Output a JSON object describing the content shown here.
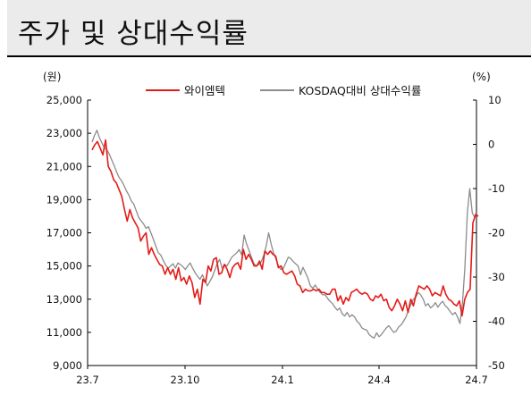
{
  "header": {
    "title": "주가 및 상대수익률"
  },
  "chart_data": {
    "type": "line",
    "title": "주가 및 상대수익률",
    "left_axis": {
      "unit": "(원)",
      "ylim": [
        9000,
        25000
      ],
      "ticks": [
        9000,
        11000,
        13000,
        15000,
        17000,
        19000,
        21000,
        23000,
        25000
      ],
      "tick_labels": [
        "9,000",
        "11,000",
        "13,000",
        "15,000",
        "17,000",
        "19,000",
        "21,000",
        "23,000",
        "25,000"
      ]
    },
    "right_axis": {
      "unit": "(%)",
      "ylim": [
        -50,
        10
      ],
      "ticks": [
        -50,
        -40,
        -30,
        -20,
        -10,
        0,
        10
      ],
      "tick_labels": [
        "-50",
        "-40",
        "-30",
        "-20",
        "-10",
        "0",
        "10"
      ]
    },
    "x_axis": {
      "tick_labels": [
        "23.7",
        "23.10",
        "24.1",
        "24.4",
        "24.7"
      ]
    },
    "legend_position": "top",
    "series": [
      {
        "name": "와이엠텍",
        "axis": "left",
        "color": "#e41b17",
        "values": [
          22000,
          22300,
          22500,
          22100,
          21700,
          22600,
          21000,
          20700,
          20200,
          20000,
          19600,
          19200,
          18400,
          17700,
          18400,
          17900,
          17600,
          17300,
          16500,
          16800,
          17000,
          15700,
          16100,
          15700,
          15400,
          15100,
          15000,
          14500,
          14900,
          14500,
          14800,
          14200,
          14900,
          14100,
          14300,
          13900,
          14400,
          14000,
          13100,
          13600,
          12700,
          14200,
          14000,
          15000,
          14700,
          15400,
          15500,
          14500,
          14600,
          15100,
          14800,
          14300,
          14900,
          15100,
          15200,
          14800,
          16000,
          15400,
          15700,
          15400,
          15000,
          15000,
          15300,
          14800,
          15900,
          15700,
          15900,
          15700,
          15600,
          14900,
          15000,
          14600,
          14500,
          14600,
          14700,
          14400,
          13900,
          13800,
          13400,
          13600,
          13500,
          13500,
          13600,
          13500,
          13600,
          13400,
          13400,
          13300,
          13300,
          13600,
          13600,
          12900,
          13200,
          12700,
          13100,
          12900,
          13400,
          13500,
          13600,
          13400,
          13300,
          13400,
          13300,
          13000,
          12900,
          13200,
          13100,
          13300,
          12900,
          13000,
          12500,
          12300,
          12600,
          13000,
          12700,
          12300,
          12900,
          12200,
          13000,
          12600,
          13300,
          13800,
          13700,
          13600,
          13800,
          13600,
          13200,
          13400,
          13300,
          13200,
          13800,
          13300,
          13000,
          12900,
          12700,
          12600,
          12900,
          12000,
          13000,
          13400,
          13600,
          17600,
          18100,
          18000
        ]
      },
      {
        "name": "KOSDAQ대비 상대수익률",
        "axis": "right",
        "color": "#8c8c8c",
        "values": [
          0.5,
          2.0,
          3.2,
          1.5,
          0.3,
          -0.8,
          -1.2,
          -2.2,
          -3.5,
          -4.8,
          -6.2,
          -7.5,
          -8.2,
          -9.3,
          -10.5,
          -11.5,
          -12.8,
          -13.5,
          -15.0,
          -16.5,
          -17.3,
          -18.0,
          -19.0,
          -18.6,
          -20.0,
          -21.5,
          -23.0,
          -24.5,
          -25.0,
          -26.2,
          -27.3,
          -28.0,
          -27.5,
          -27.0,
          -28.0,
          -26.8,
          -27.2,
          -27.6,
          -28.3,
          -27.5,
          -26.8,
          -28.0,
          -29.0,
          -29.8,
          -30.5,
          -29.5,
          -30.8,
          -32.0,
          -31.0,
          -30.0,
          -28.5,
          -27.0,
          -26.0,
          -28.0,
          -27.2,
          -27.5,
          -26.5,
          -25.5,
          -25.0,
          -24.5,
          -23.8,
          -25.0,
          -20.5,
          -22.5,
          -24.0,
          -25.5,
          -27.0,
          -27.5,
          -27.2,
          -26.5,
          -25.0,
          -23.0,
          -20.0,
          -22.5,
          -24.5,
          -26.0,
          -27.5,
          -28.3,
          -28.0,
          -26.8,
          -25.5,
          -25.8,
          -26.5,
          -27.0,
          -27.5,
          -29.5,
          -27.8,
          -29.0,
          -30.2,
          -32.0,
          -32.5,
          -31.8,
          -32.8,
          -33.5,
          -34.0,
          -34.0,
          -34.8,
          -35.5,
          -36.0,
          -36.8,
          -37.5,
          -37.0,
          -38.3,
          -38.8,
          -38.0,
          -39.0,
          -38.5,
          -39.0,
          -40.0,
          -40.5,
          -41.5,
          -41.8,
          -42.0,
          -43.0,
          -43.5,
          -43.8,
          -42.6,
          -43.5,
          -43.0,
          -42.2,
          -41.5,
          -41.0,
          -41.8,
          -42.5,
          -42.2,
          -41.3,
          -40.8,
          -40.0,
          -39.0,
          -37.5,
          -36.2,
          -35.0,
          -34.5,
          -33.5,
          -34.0,
          -35.0,
          -36.5,
          -36.0,
          -37.0,
          -36.5,
          -35.8,
          -36.8,
          -36.0,
          -35.5,
          -36.5,
          -37.0,
          -37.8,
          -38.5,
          -38.0,
          -39.0,
          -40.5,
          -36.0,
          -28.0,
          -15.5,
          -10.0,
          -15.5,
          -16.5
        ]
      }
    ]
  }
}
